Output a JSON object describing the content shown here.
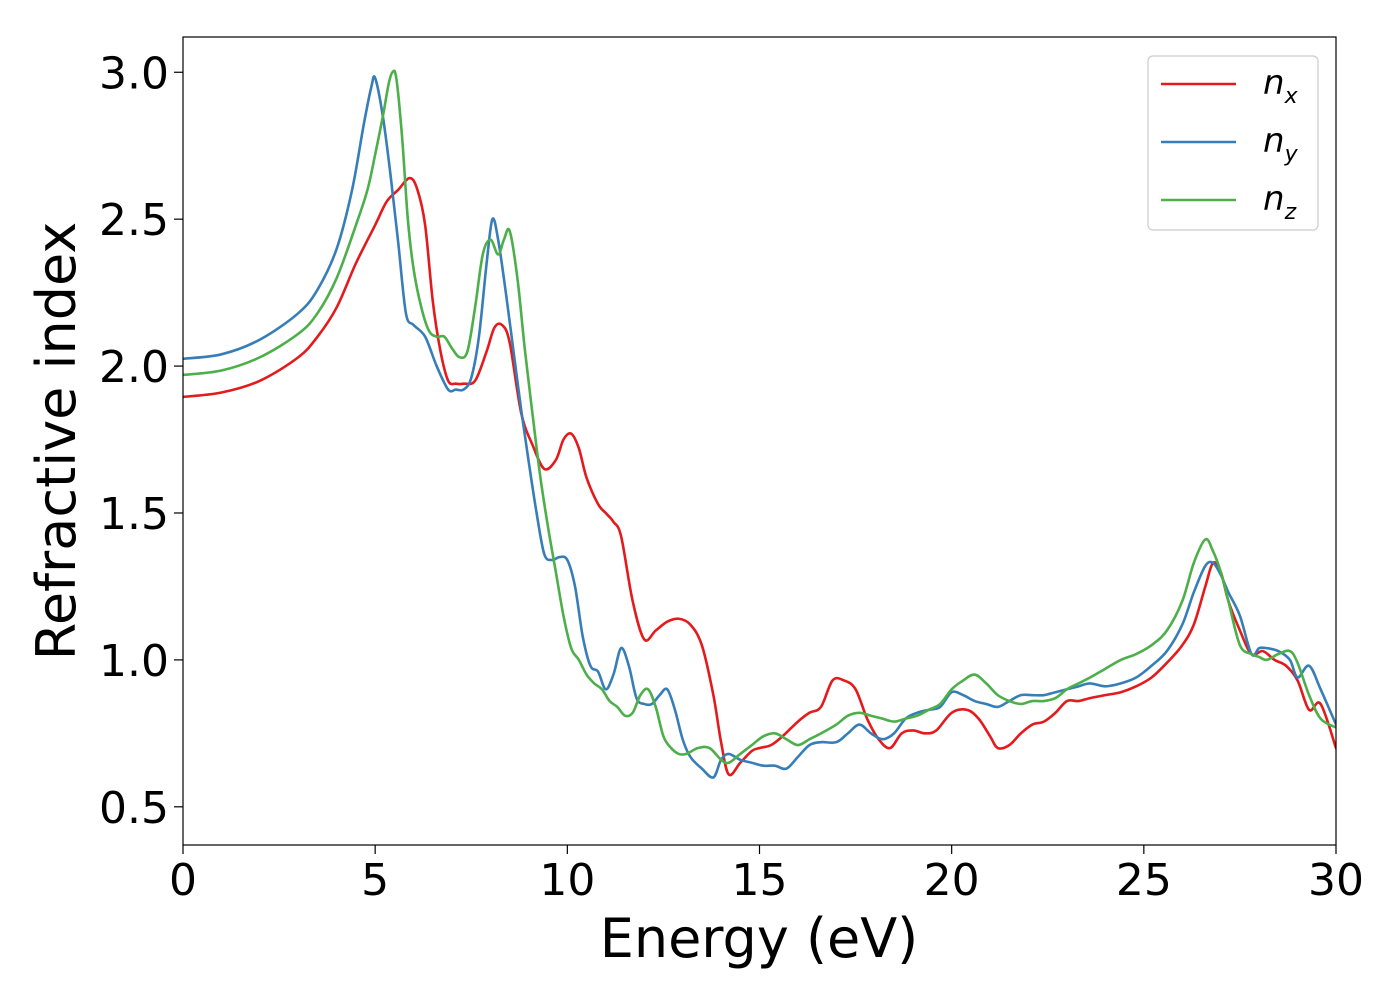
{
  "chart_data": {
    "type": "line",
    "xlabel": "Energy (eV)",
    "ylabel": "Refractive index",
    "xlim": [
      0,
      30
    ],
    "ylim": [
      0.37,
      3.12
    ],
    "xticks": [
      0,
      5,
      10,
      15,
      20,
      25,
      30
    ],
    "yticks": [
      0.5,
      1.0,
      1.5,
      2.0,
      2.5,
      3.0
    ],
    "xtick_labels": [
      "0",
      "5",
      "10",
      "15",
      "20",
      "25",
      "30"
    ],
    "ytick_labels": [
      "0.5",
      "1.0",
      "1.5",
      "2.0",
      "2.5",
      "3.0"
    ],
    "grid": false,
    "legend_position": "top-right",
    "series": [
      {
        "name": "n_x",
        "label_base": "n",
        "label_sub": "x",
        "color": "#e41a1c",
        "x": [
          0,
          1,
          2,
          3,
          3.5,
          4,
          4.5,
          5,
          5.3,
          5.6,
          5.9,
          6.1,
          6.3,
          6.5,
          6.7,
          6.9,
          7.1,
          7.3,
          7.6,
          7.9,
          8.1,
          8.3,
          8.5,
          8.8,
          9.1,
          9.4,
          9.7,
          9.9,
          10.1,
          10.3,
          10.5,
          10.8,
          11.0,
          11.2,
          11.4,
          11.7,
          12.0,
          12.3,
          12.6,
          12.9,
          13.2,
          13.5,
          13.8,
          14.0,
          14.2,
          14.5,
          14.8,
          15.0,
          15.3,
          15.6,
          16.0,
          16.3,
          16.6,
          16.9,
          17.2,
          17.5,
          17.8,
          18.1,
          18.4,
          18.7,
          19.0,
          19.3,
          19.6,
          20.0,
          20.4,
          20.7,
          21.0,
          21.2,
          21.5,
          21.8,
          22.1,
          22.4,
          22.7,
          23.0,
          23.3,
          23.6,
          24.0,
          24.4,
          24.8,
          25.2,
          25.6,
          26.0,
          26.3,
          26.6,
          26.8,
          27.0,
          27.2,
          27.5,
          27.8,
          28.1,
          28.4,
          28.7,
          29.0,
          29.3,
          29.6,
          30.0
        ],
        "y": [
          1.895,
          1.91,
          1.95,
          2.03,
          2.1,
          2.2,
          2.35,
          2.48,
          2.56,
          2.6,
          2.64,
          2.6,
          2.48,
          2.22,
          2.05,
          1.95,
          1.94,
          1.94,
          1.95,
          2.05,
          2.13,
          2.14,
          2.08,
          1.84,
          1.73,
          1.65,
          1.68,
          1.75,
          1.77,
          1.72,
          1.62,
          1.53,
          1.5,
          1.47,
          1.42,
          1.2,
          1.07,
          1.1,
          1.13,
          1.14,
          1.12,
          1.05,
          0.88,
          0.72,
          0.61,
          0.65,
          0.69,
          0.7,
          0.71,
          0.74,
          0.79,
          0.82,
          0.84,
          0.93,
          0.93,
          0.9,
          0.8,
          0.73,
          0.7,
          0.75,
          0.76,
          0.75,
          0.76,
          0.82,
          0.83,
          0.8,
          0.74,
          0.7,
          0.71,
          0.75,
          0.78,
          0.79,
          0.82,
          0.86,
          0.86,
          0.87,
          0.88,
          0.89,
          0.91,
          0.94,
          0.99,
          1.05,
          1.12,
          1.25,
          1.33,
          1.3,
          1.2,
          1.1,
          1.02,
          1.03,
          1.0,
          0.98,
          0.93,
          0.83,
          0.85,
          0.7
        ]
      },
      {
        "name": "n_y",
        "label_base": "n",
        "label_sub": "y",
        "color": "#377eb8",
        "x": [
          0,
          1,
          2,
          3,
          3.5,
          4,
          4.4,
          4.7,
          4.9,
          5.0,
          5.2,
          5.4,
          5.6,
          5.8,
          6.0,
          6.3,
          6.6,
          6.9,
          7.1,
          7.3,
          7.5,
          7.7,
          7.9,
          8.05,
          8.2,
          8.4,
          8.6,
          8.8,
          9.0,
          9.2,
          9.4,
          9.6,
          9.8,
          10.0,
          10.2,
          10.4,
          10.6,
          10.8,
          11.0,
          11.2,
          11.4,
          11.6,
          11.8,
          12.0,
          12.2,
          12.4,
          12.6,
          12.8,
          13.0,
          13.2,
          13.5,
          13.8,
          14.0,
          14.2,
          14.5,
          14.8,
          15.1,
          15.4,
          15.7,
          16.0,
          16.3,
          16.6,
          17.0,
          17.3,
          17.6,
          17.9,
          18.2,
          18.5,
          18.8,
          19.1,
          19.4,
          19.7,
          20.0,
          20.3,
          20.6,
          20.9,
          21.2,
          21.5,
          21.8,
          22.1,
          22.4,
          22.7,
          23.0,
          23.3,
          23.6,
          24.0,
          24.4,
          24.8,
          25.2,
          25.6,
          26.0,
          26.3,
          26.6,
          26.8,
          27.0,
          27.2,
          27.5,
          27.8,
          28.0,
          28.2,
          28.5,
          28.8,
          29.0,
          29.3,
          29.6,
          30.0
        ],
        "y": [
          2.025,
          2.04,
          2.09,
          2.18,
          2.26,
          2.4,
          2.6,
          2.82,
          2.95,
          2.98,
          2.85,
          2.65,
          2.42,
          2.18,
          2.14,
          2.1,
          2.0,
          1.92,
          1.92,
          1.92,
          1.96,
          2.1,
          2.35,
          2.5,
          2.43,
          2.25,
          2.05,
          1.85,
          1.67,
          1.5,
          1.36,
          1.34,
          1.35,
          1.34,
          1.25,
          1.08,
          0.98,
          0.96,
          0.9,
          0.95,
          1.04,
          0.98,
          0.87,
          0.85,
          0.85,
          0.88,
          0.9,
          0.83,
          0.73,
          0.67,
          0.63,
          0.6,
          0.66,
          0.68,
          0.66,
          0.65,
          0.64,
          0.64,
          0.63,
          0.67,
          0.71,
          0.72,
          0.72,
          0.75,
          0.78,
          0.75,
          0.73,
          0.75,
          0.8,
          0.82,
          0.83,
          0.84,
          0.89,
          0.88,
          0.86,
          0.85,
          0.84,
          0.86,
          0.88,
          0.88,
          0.88,
          0.89,
          0.9,
          0.91,
          0.92,
          0.91,
          0.92,
          0.94,
          0.98,
          1.03,
          1.12,
          1.23,
          1.32,
          1.33,
          1.29,
          1.23,
          1.15,
          1.02,
          1.04,
          1.04,
          1.03,
          1.0,
          0.94,
          0.98,
          0.9,
          0.78
        ]
      },
      {
        "name": "n_z",
        "label_base": "n",
        "label_sub": "z",
        "color": "#4daf4a",
        "x": [
          0,
          1,
          2,
          3,
          3.5,
          4,
          4.5,
          4.8,
          5.0,
          5.2,
          5.35,
          5.45,
          5.55,
          5.7,
          5.85,
          6.0,
          6.2,
          6.4,
          6.6,
          6.8,
          7.0,
          7.2,
          7.4,
          7.6,
          7.8,
          8.0,
          8.2,
          8.35,
          8.5,
          8.7,
          8.9,
          9.1,
          9.3,
          9.5,
          9.7,
          9.9,
          10.1,
          10.3,
          10.5,
          10.7,
          10.9,
          11.1,
          11.3,
          11.5,
          11.7,
          11.9,
          12.1,
          12.3,
          12.5,
          12.7,
          12.9,
          13.1,
          13.4,
          13.7,
          14.0,
          14.2,
          14.5,
          14.8,
          15.1,
          15.4,
          15.7,
          16.0,
          16.3,
          16.6,
          17.0,
          17.3,
          17.6,
          17.9,
          18.2,
          18.5,
          18.8,
          19.1,
          19.4,
          19.7,
          20.0,
          20.3,
          20.6,
          20.9,
          21.2,
          21.5,
          21.8,
          22.1,
          22.4,
          22.7,
          23.0,
          23.3,
          23.6,
          24.0,
          24.4,
          24.8,
          25.2,
          25.6,
          26.0,
          26.3,
          26.6,
          26.8,
          27.0,
          27.2,
          27.5,
          27.8,
          28.0,
          28.2,
          28.5,
          28.8,
          29.0,
          29.3,
          29.6,
          30.0
        ],
        "y": [
          1.97,
          1.985,
          2.03,
          2.11,
          2.18,
          2.3,
          2.48,
          2.6,
          2.72,
          2.85,
          2.96,
          3.0,
          2.98,
          2.78,
          2.5,
          2.33,
          2.2,
          2.12,
          2.1,
          2.1,
          2.06,
          2.03,
          2.05,
          2.2,
          2.38,
          2.43,
          2.38,
          2.43,
          2.46,
          2.3,
          2.05,
          1.83,
          1.62,
          1.45,
          1.3,
          1.15,
          1.04,
          1.0,
          0.95,
          0.92,
          0.9,
          0.86,
          0.84,
          0.81,
          0.82,
          0.88,
          0.9,
          0.84,
          0.74,
          0.7,
          0.68,
          0.68,
          0.7,
          0.7,
          0.66,
          0.65,
          0.68,
          0.71,
          0.74,
          0.75,
          0.73,
          0.71,
          0.73,
          0.75,
          0.78,
          0.81,
          0.82,
          0.81,
          0.8,
          0.79,
          0.8,
          0.81,
          0.83,
          0.85,
          0.9,
          0.93,
          0.95,
          0.92,
          0.88,
          0.86,
          0.85,
          0.86,
          0.86,
          0.87,
          0.9,
          0.92,
          0.94,
          0.97,
          1.0,
          1.02,
          1.05,
          1.1,
          1.2,
          1.33,
          1.41,
          1.37,
          1.3,
          1.2,
          1.05,
          1.02,
          1.01,
          1.0,
          1.02,
          1.03,
          0.99,
          0.88,
          0.8,
          0.77
        ]
      }
    ]
  }
}
